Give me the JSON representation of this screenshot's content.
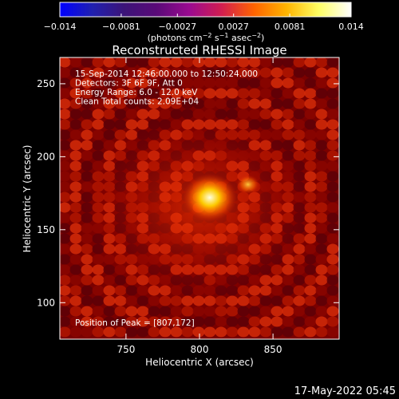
{
  "chart_data": {
    "type": "heatmap",
    "title": "Reconstructed RHESSI Image",
    "xlabel": "Heliocentric X (arcsec)",
    "ylabel": "Heliocentric Y (arcsec)",
    "xlim": [
      705,
      895
    ],
    "ylim": [
      75,
      268
    ],
    "xticks": [
      750,
      800,
      850
    ],
    "xtick_labels": [
      "750",
      "800",
      "850"
    ],
    "yticks": [
      100,
      150,
      200,
      250
    ],
    "ytick_labels": [
      "100",
      "150",
      "200",
      "250"
    ],
    "colorbar": {
      "range": [
        -0.014,
        0.014
      ],
      "ticks": [
        -0.014,
        -0.0081,
        -0.0027,
        0.0027,
        0.0081,
        0.014
      ],
      "tick_labels": [
        "−0.014",
        "−0.0081",
        "−0.0027",
        "0.0027",
        "0.0081",
        "0.014"
      ],
      "unit_parts": [
        "(photons cm",
        "−2",
        " s",
        "−1",
        " asec",
        "−2",
        ")"
      ],
      "colormap": "rhessi-heat",
      "stops": [
        "#0000ff",
        "#2020b0",
        "#3c1478",
        "#5a0a78",
        "#9a0a90",
        "#d21e50",
        "#ff6400",
        "#ffb400",
        "#ffff64",
        "#ffffff"
      ]
    },
    "annotations": [
      "15-Sep-2014 12:46:00.000 to 12:50:24.000",
      "Detectors: 3F 6F 9F, Att 0",
      "Energy Range: 6.0 - 12.0 keV",
      "Clean    Total counts: 2.09E+04"
    ],
    "peak_label": "Position of Peak = [807,172]",
    "peak": [
      807,
      172
    ],
    "secondary_source": [
      833,
      181
    ],
    "timestamp": "17-May-2022 05:45"
  }
}
